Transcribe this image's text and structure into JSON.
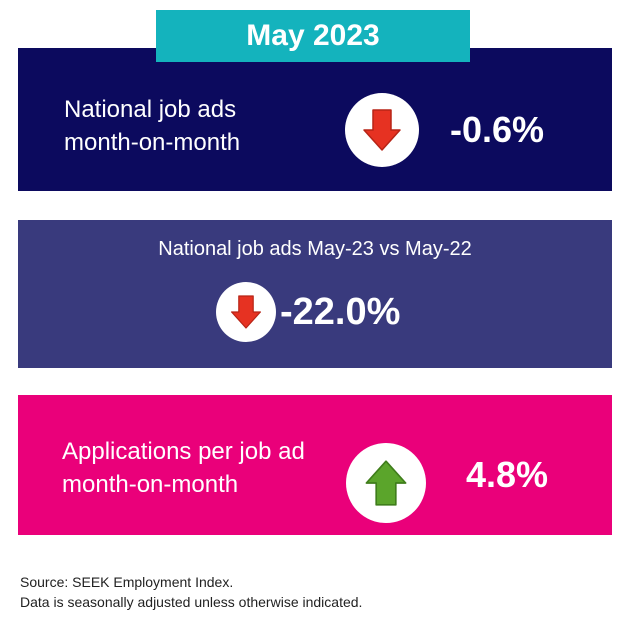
{
  "header": {
    "title": "May 2023"
  },
  "panels": [
    {
      "label_lines": [
        "National job ads",
        "month-on-month"
      ],
      "value": "-0.6%",
      "icon": "down-arrow-icon",
      "bg_color": "#0c0a5e",
      "arrow_color": "#e63222"
    },
    {
      "subtitle": "National job ads May-23 vs May-22",
      "value": "-22.0%",
      "icon": "down-arrow-icon",
      "bg_color": "#393a7d",
      "arrow_color": "#e63222"
    },
    {
      "label_lines": [
        "Applications per job ad",
        "month-on-month"
      ],
      "value": "4.8%",
      "icon": "up-arrow-icon",
      "bg_color": "#ea007a",
      "arrow_color": "#5ba52b"
    }
  ],
  "footer": {
    "line1": "Source: SEEK Employment Index.",
    "line2": "Data is seasonally adjusted unless otherwise indicated."
  }
}
